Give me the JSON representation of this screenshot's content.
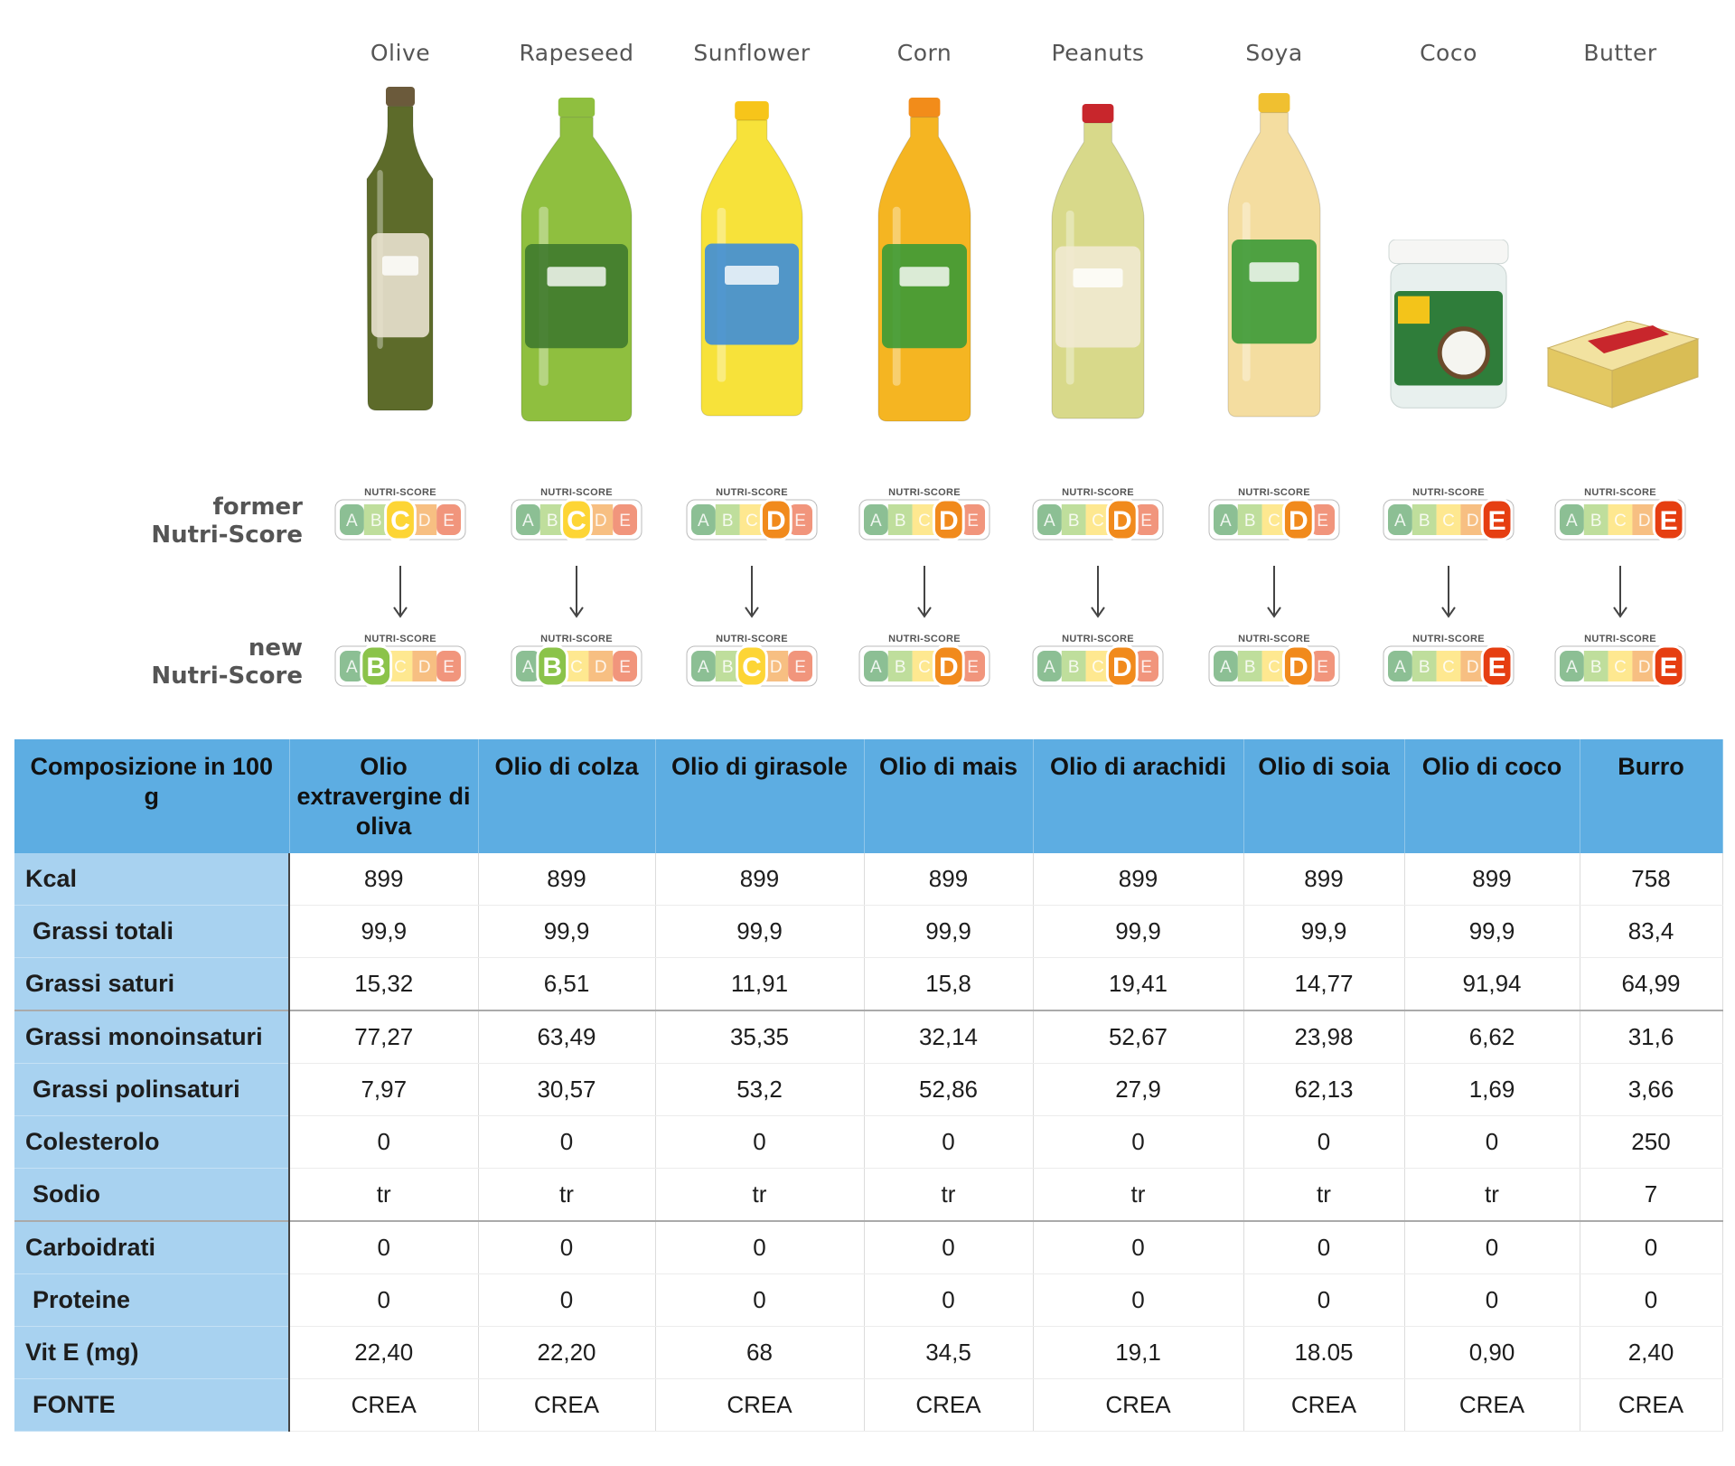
{
  "products": [
    {
      "name": "Olive",
      "former_grade": "C",
      "new_grade": "B",
      "icon": "olive-oil-bottle-icon"
    },
    {
      "name": "Rapeseed",
      "former_grade": "C",
      "new_grade": "B",
      "icon": "rapeseed-oil-bottle-icon"
    },
    {
      "name": "Sunflower",
      "former_grade": "D",
      "new_grade": "C",
      "icon": "sunflower-oil-bottle-icon"
    },
    {
      "name": "Corn",
      "former_grade": "D",
      "new_grade": "D",
      "icon": "corn-oil-bottle-icon"
    },
    {
      "name": "Peanuts",
      "former_grade": "D",
      "new_grade": "D",
      "icon": "peanut-oil-bottle-icon"
    },
    {
      "name": "Soya",
      "former_grade": "D",
      "new_grade": "D",
      "icon": "soya-oil-bottle-icon"
    },
    {
      "name": "Coco",
      "former_grade": "E",
      "new_grade": "E",
      "icon": "coconut-oil-jar-icon"
    },
    {
      "name": "Butter",
      "former_grade": "E",
      "new_grade": "E",
      "icon": "butter-block-icon"
    }
  ],
  "labels": {
    "former_line1": "former",
    "former_line2": "Nutri-Score",
    "new_line1": "new",
    "new_line2": "Nutri-Score",
    "badge_header": "NUTRI-SCORE",
    "grades": [
      "A",
      "B",
      "C",
      "D",
      "E"
    ]
  },
  "nutriscore_colors": {
    "A": "#2e8b3d",
    "B": "#8bc34a",
    "C": "#fdd535",
    "D": "#f18a1c",
    "E": "#e63e11"
  },
  "table": {
    "header_first": "Composizione in 100 g",
    "columns": [
      "Olio extravergine di oliva",
      "Olio di colza",
      "Olio di girasole",
      "Olio di mais",
      "Olio di arachidi",
      "Olio di soia",
      "Olio di coco",
      "Burro"
    ],
    "rows": [
      {
        "label": "Kcal",
        "values": [
          "899",
          "899",
          "899",
          "899",
          "899",
          "899",
          "899",
          "758"
        ]
      },
      {
        "label": "Grassi totali",
        "values": [
          "99,9",
          "99,9",
          "99,9",
          "99,9",
          "99,9",
          "99,9",
          "99,9",
          "83,4"
        ]
      },
      {
        "label": "Grassi saturi",
        "values": [
          "15,32",
          "6,51",
          "11,91",
          "15,8",
          "19,41",
          "14,77",
          "91,94",
          "64,99"
        ]
      },
      {
        "label": "Grassi monoinsaturi",
        "values": [
          "77,27",
          "63,49",
          "35,35",
          "32,14",
          "52,67",
          "23,98",
          "6,62",
          "31,6"
        ]
      },
      {
        "label": "Grassi polinsaturi",
        "values": [
          "7,97",
          "30,57",
          "53,2",
          "52,86",
          "27,9",
          "62,13",
          "1,69",
          "3,66"
        ]
      },
      {
        "label": "Colesterolo",
        "values": [
          "0",
          "0",
          "0",
          "0",
          "0",
          "0",
          "0",
          "250"
        ]
      },
      {
        "label": "Sodio",
        "values": [
          "tr",
          "tr",
          "tr",
          "tr",
          "tr",
          "tr",
          "tr",
          "7"
        ]
      },
      {
        "label": "Carboidrati",
        "values": [
          "0",
          "0",
          "0",
          "0",
          "0",
          "0",
          "0",
          "0"
        ]
      },
      {
        "label": "Proteine",
        "values": [
          "0",
          "0",
          "0",
          "0",
          "0",
          "0",
          "0",
          "0"
        ]
      },
      {
        "label": "Vit E (mg)",
        "values": [
          "22,40",
          "22,20",
          "68",
          "34,5",
          "19,1",
          "18.05",
          "0,90",
          "2,40"
        ]
      },
      {
        "label": "FONTE",
        "values": [
          "CREA",
          "CREA",
          "CREA",
          "CREA",
          "CREA",
          "CREA",
          "CREA",
          "CREA"
        ]
      }
    ]
  }
}
